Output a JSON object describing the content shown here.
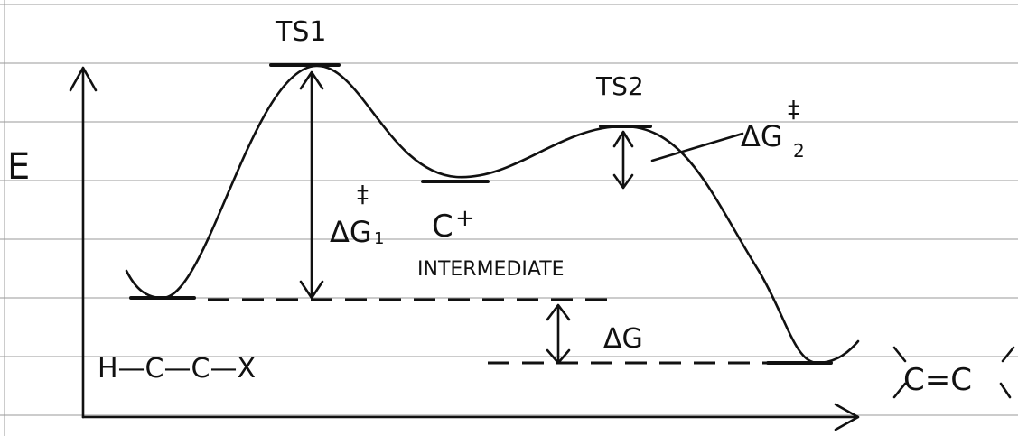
{
  "axis": {
    "label": "E"
  },
  "states": {
    "ts1": {
      "label": "TS1"
    },
    "ts2": {
      "label": "TS2"
    },
    "intermediate": {
      "symbol": "C",
      "charge": "+",
      "label": "INTERMEDIATE"
    },
    "reactant": {
      "label": "H—C—C—X"
    },
    "product": {
      "label": "C=C"
    }
  },
  "arrows": {
    "dg1": {
      "symbol": "ΔG",
      "sup": "‡",
      "sub": "1"
    },
    "dg2": {
      "symbol": "ΔG",
      "sup": "‡",
      "sub": "2"
    },
    "dg": {
      "symbol": "ΔG"
    }
  }
}
